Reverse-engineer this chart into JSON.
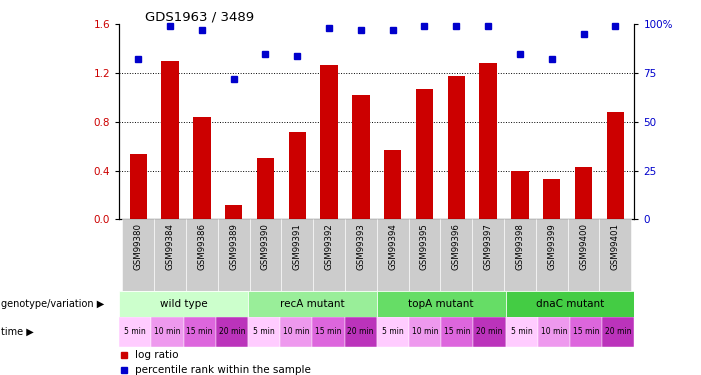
{
  "title": "GDS1963 / 3489",
  "samples": [
    "GSM99380",
    "GSM99384",
    "GSM99386",
    "GSM99389",
    "GSM99390",
    "GSM99391",
    "GSM99392",
    "GSM99393",
    "GSM99394",
    "GSM99395",
    "GSM99396",
    "GSM99397",
    "GSM99398",
    "GSM99399",
    "GSM99400",
    "GSM99401"
  ],
  "log_ratio": [
    0.54,
    1.3,
    0.84,
    0.12,
    0.5,
    0.72,
    1.27,
    1.02,
    0.57,
    1.07,
    1.18,
    1.28,
    0.4,
    0.33,
    0.43,
    0.88
  ],
  "percentile_rank": [
    82,
    99,
    97,
    72,
    85,
    84,
    98,
    97,
    97,
    99,
    99,
    99,
    85,
    82,
    95,
    99
  ],
  "bar_color": "#cc0000",
  "dot_color": "#0000cc",
  "ylim_left": [
    0,
    1.6
  ],
  "ylim_right": [
    0,
    100
  ],
  "yticks_left": [
    0,
    0.4,
    0.8,
    1.2,
    1.6
  ],
  "yticks_right": [
    0,
    25,
    50,
    75,
    100
  ],
  "genotype_groups": [
    {
      "label": "wild type",
      "start": 0,
      "end": 4,
      "color": "#ccffcc"
    },
    {
      "label": "recA mutant",
      "start": 4,
      "end": 8,
      "color": "#99ee99"
    },
    {
      "label": "topA mutant",
      "start": 8,
      "end": 12,
      "color": "#66dd66"
    },
    {
      "label": "dnaC mutant",
      "start": 12,
      "end": 16,
      "color": "#44cc44"
    }
  ],
  "time_labels": [
    "5 min",
    "10 min",
    "15 min",
    "20 min",
    "5 min",
    "10 min",
    "15 min",
    "20 min",
    "5 min",
    "10 min",
    "15 min",
    "20 min",
    "5 min",
    "10 min",
    "15 min",
    "20 min"
  ],
  "time_color_cycle": [
    "#ffccff",
    "#ee99ee",
    "#dd66dd",
    "#bb33bb"
  ],
  "background_color": "#ffffff",
  "sample_bg_color": "#cccccc"
}
